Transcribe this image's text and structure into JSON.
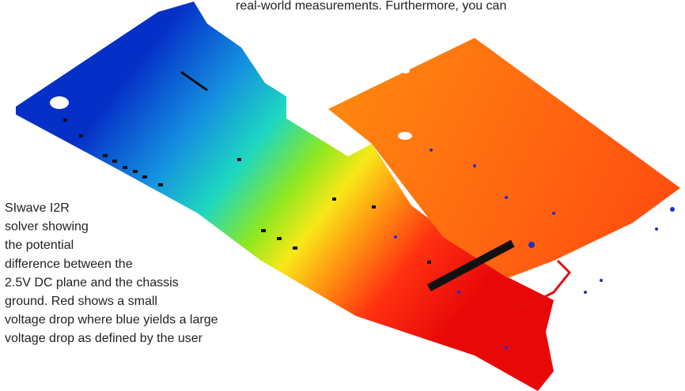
{
  "body_text": "real-world measurements. Furthermore, you can",
  "caption": {
    "lines": [
      "SIwave I2R",
      "solver showing",
      "the potential",
      "difference between the",
      "2.5V DC plane and the chassis",
      "ground. Red shows a small",
      "voltage drop where blue yields a large",
      "voltage drop as defined by the user"
    ]
  }
}
